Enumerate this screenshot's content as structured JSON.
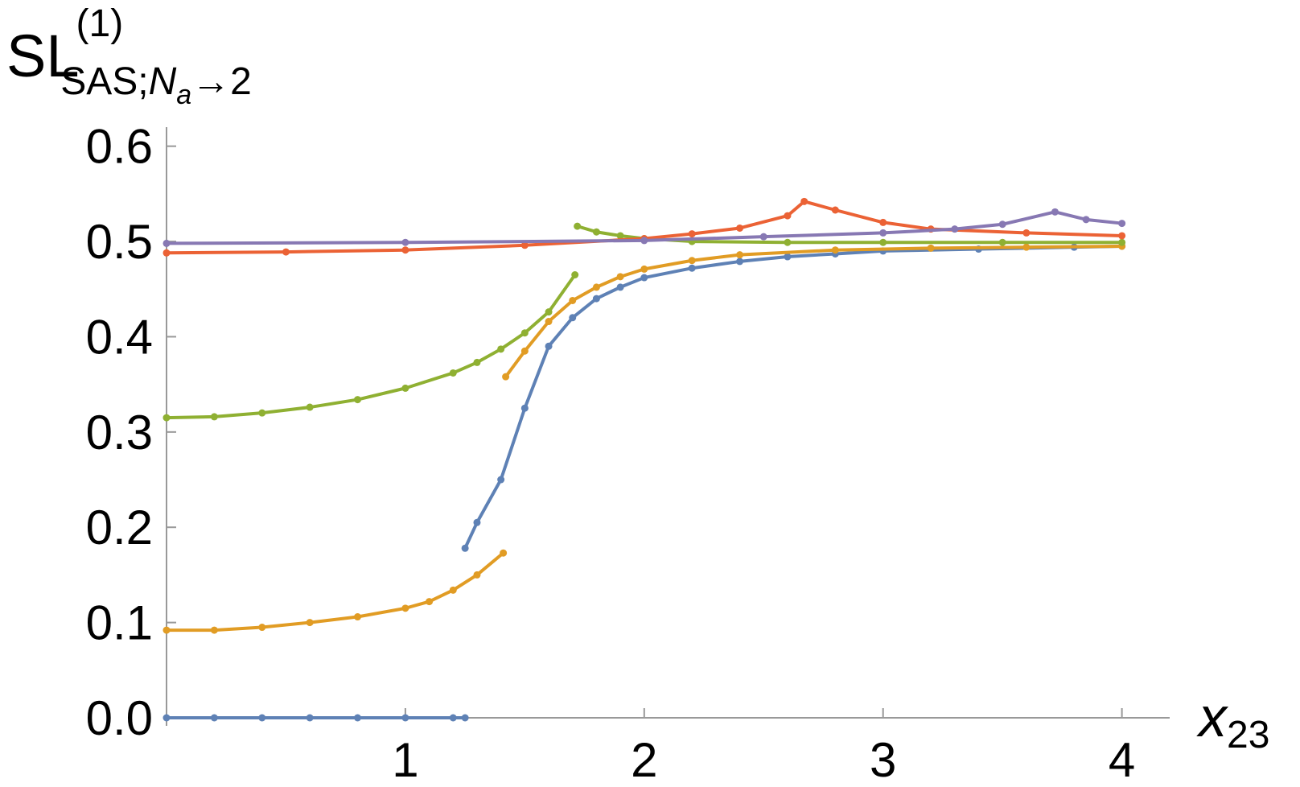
{
  "chart_data": {
    "type": "line",
    "ylabel": {
      "main": "SL",
      "sup": "(1)",
      "sub": "SAS;",
      "sub_italic": "N",
      "sub_sub": "a",
      "sub_end": "→2"
    },
    "xlabel": {
      "main": "x",
      "sub": "23"
    },
    "xlim": [
      0,
      4.2
    ],
    "ylim": [
      0,
      0.62
    ],
    "xticks": [
      1,
      2,
      3,
      4
    ],
    "yticks": [
      {
        "value": 0,
        "label": "0.0"
      },
      0.1,
      0.2,
      0.3,
      0.4,
      0.5,
      0.6
    ],
    "markers": true,
    "series": [
      {
        "color": "#5e81b5",
        "x": [
          0,
          0.2,
          0.4,
          0.6,
          0.8,
          1.0,
          1.2,
          1.25,
          1.25,
          1.25,
          1.3,
          1.4,
          1.5,
          1.6,
          1.7,
          1.8,
          1.9,
          2.0,
          2.2,
          2.4,
          2.6,
          2.8,
          3.0,
          3.4,
          3.8,
          4.0
        ],
        "values": [
          0,
          0,
          0,
          0,
          0,
          0,
          0,
          0,
          null,
          0.178,
          0.205,
          0.25,
          0.325,
          0.39,
          0.42,
          0.44,
          0.452,
          0.462,
          0.472,
          0.479,
          0.484,
          0.487,
          0.49,
          0.492,
          0.494,
          0.495
        ]
      },
      {
        "color": "#e19c24",
        "x": [
          0,
          0.2,
          0.4,
          0.6,
          0.8,
          1.0,
          1.1,
          1.2,
          1.3,
          1.41,
          1.42,
          1.42,
          1.5,
          1.6,
          1.7,
          1.8,
          1.9,
          2.0,
          2.2,
          2.4,
          2.8,
          3.2,
          3.6,
          4.0
        ],
        "values": [
          0.092,
          0.092,
          0.095,
          0.1,
          0.106,
          0.115,
          0.122,
          0.134,
          0.15,
          0.173,
          null,
          0.358,
          0.385,
          0.416,
          0.438,
          0.452,
          0.463,
          0.471,
          0.48,
          0.486,
          0.491,
          0.493,
          0.494,
          0.495
        ]
      },
      {
        "color": "#8fb032",
        "x": [
          0,
          0.2,
          0.4,
          0.6,
          0.8,
          1.0,
          1.2,
          1.3,
          1.4,
          1.5,
          1.6,
          1.71,
          1.72,
          1.72,
          1.8,
          1.9,
          2.0,
          2.2,
          2.6,
          3.0,
          3.5,
          4.0
        ],
        "values": [
          0.315,
          0.316,
          0.32,
          0.326,
          0.334,
          0.346,
          0.362,
          0.373,
          0.387,
          0.404,
          0.426,
          0.465,
          null,
          0.516,
          0.51,
          0.506,
          0.503,
          0.5,
          0.499,
          0.499,
          0.499,
          0.499
        ]
      },
      {
        "color": "#eb6235",
        "x": [
          0,
          0.5,
          1.0,
          1.5,
          2.0,
          2.2,
          2.4,
          2.6,
          2.67,
          2.8,
          3.0,
          3.2,
          3.6,
          4.0
        ],
        "values": [
          0.488,
          0.489,
          0.491,
          0.496,
          0.503,
          0.508,
          0.514,
          0.527,
          0.542,
          0.533,
          0.52,
          0.513,
          0.509,
          0.506
        ]
      },
      {
        "color": "#8778b3",
        "x": [
          0,
          1,
          2,
          2.5,
          3,
          3.3,
          3.5,
          3.72,
          3.85,
          4.0
        ],
        "values": [
          0.498,
          0.499,
          0.501,
          0.505,
          0.509,
          0.513,
          0.518,
          0.531,
          0.523,
          0.519
        ]
      }
    ]
  }
}
